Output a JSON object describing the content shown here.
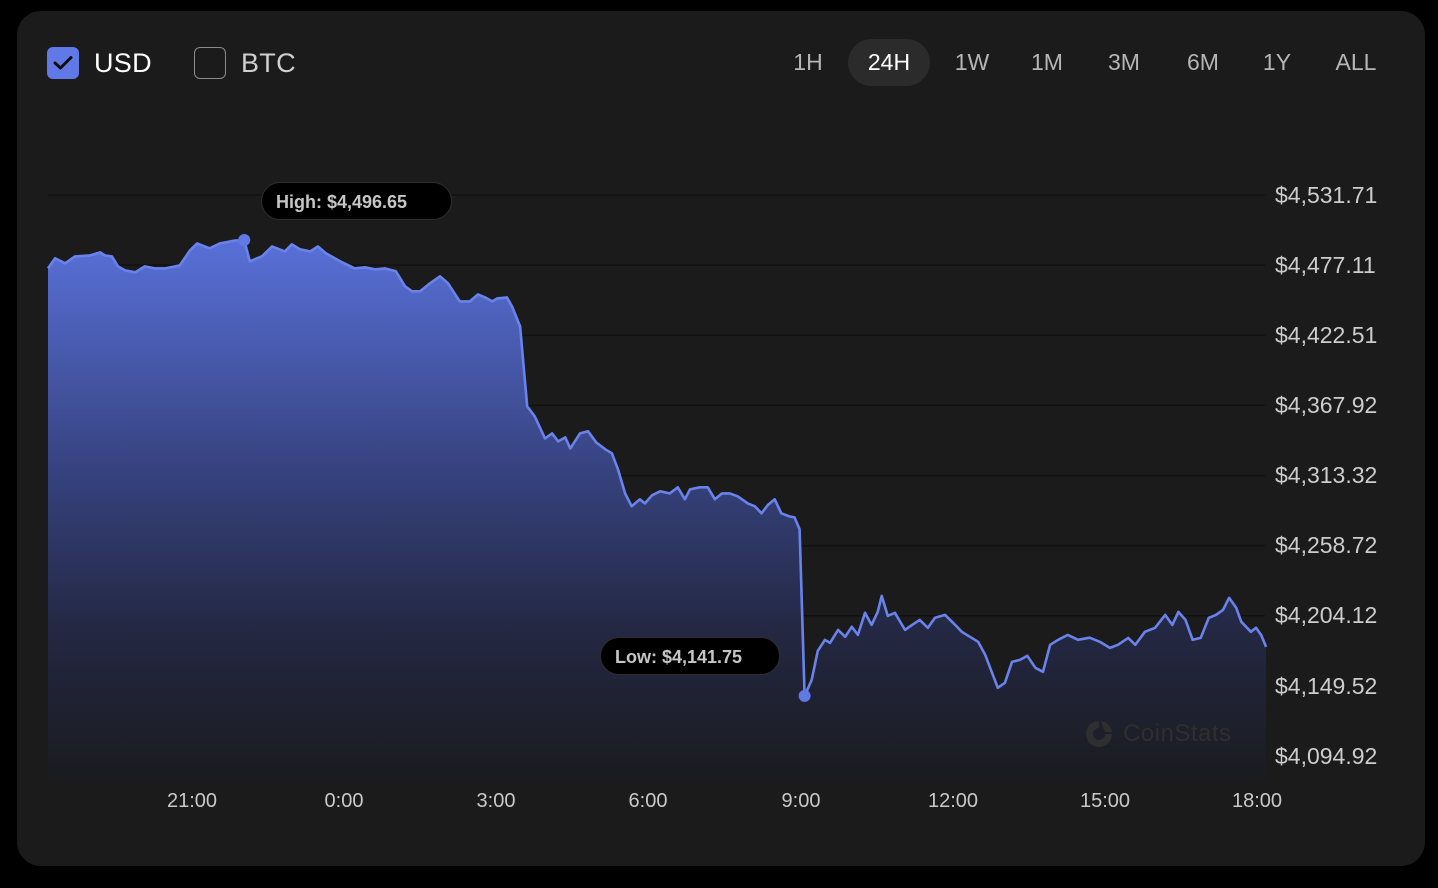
{
  "currency_toggles": [
    {
      "label": "USD",
      "checked": true
    },
    {
      "label": "BTC",
      "checked": false
    }
  ],
  "time_ranges": [
    {
      "label": "1H",
      "active": false
    },
    {
      "label": "24H",
      "active": true
    },
    {
      "label": "1W",
      "active": false
    },
    {
      "label": "1M",
      "active": false
    },
    {
      "label": "3M",
      "active": false
    },
    {
      "label": "6M",
      "active": false
    },
    {
      "label": "1Y",
      "active": false
    },
    {
      "label": "ALL",
      "active": false
    }
  ],
  "tooltips": {
    "high": "High: $4,496.65",
    "low": "Low: $4,141.75"
  },
  "watermark": "CoinStats",
  "colors": {
    "accent": "#6179e6",
    "line": "#6a83ec",
    "background": "#1b1b1b",
    "grid": "#111111"
  },
  "chart_data": {
    "type": "area",
    "title": "",
    "xlabel": "",
    "ylabel": "",
    "currency": "USD",
    "range": "24H",
    "y_ticks": [
      "$4,531.71",
      "$4,477.11",
      "$4,422.51",
      "$4,367.92",
      "$4,313.32",
      "$4,258.72",
      "$4,204.12",
      "$4,149.52",
      "$4,094.92"
    ],
    "x_ticks": [
      "21:00",
      "0:00",
      "3:00",
      "6:00",
      "9:00",
      "12:00",
      "15:00",
      "18:00"
    ],
    "ylim": [
      4094.92,
      4531.71
    ],
    "grid": true,
    "high": 4496.65,
    "low": 4141.75,
    "x_unit": "hours since 21:00 (previous day)",
    "points": [
      [
        -2.84,
        4474.6
      ],
      [
        -2.7,
        4482.4
      ],
      [
        -2.5,
        4478.5
      ],
      [
        -2.31,
        4483.9
      ],
      [
        -2.01,
        4484.7
      ],
      [
        -1.81,
        4487.0
      ],
      [
        -1.72,
        4484.7
      ],
      [
        -1.58,
        4483.9
      ],
      [
        -1.46,
        4476.1
      ],
      [
        -1.32,
        4473.0
      ],
      [
        -1.12,
        4471.5
      ],
      [
        -0.93,
        4476.1
      ],
      [
        -0.73,
        4474.6
      ],
      [
        -0.53,
        4474.6
      ],
      [
        -0.24,
        4476.9
      ],
      [
        -0.04,
        4488.6
      ],
      [
        0.1,
        4494.0
      ],
      [
        0.35,
        4490.2
      ],
      [
        0.55,
        4494.0
      ],
      [
        0.85,
        4496.3
      ],
      [
        1.03,
        4496.65
      ],
      [
        1.14,
        4480.1
      ],
      [
        1.38,
        4484.0
      ],
      [
        1.58,
        4491.7
      ],
      [
        1.83,
        4487.8
      ],
      [
        1.97,
        4493.3
      ],
      [
        2.13,
        4489.4
      ],
      [
        2.33,
        4487.8
      ],
      [
        2.48,
        4491.7
      ],
      [
        2.64,
        4486.3
      ],
      [
        2.92,
        4480.1
      ],
      [
        3.21,
        4474.6
      ],
      [
        3.41,
        4475.4
      ],
      [
        3.61,
        4473.8
      ],
      [
        3.8,
        4474.6
      ],
      [
        4.02,
        4472.3
      ],
      [
        4.2,
        4460.6
      ],
      [
        4.34,
        4456.7
      ],
      [
        4.5,
        4456.7
      ],
      [
        4.69,
        4462.9
      ],
      [
        4.89,
        4468.4
      ],
      [
        5.05,
        4462.9
      ],
      [
        5.28,
        4448.9
      ],
      [
        5.48,
        4448.9
      ],
      [
        5.64,
        4454.3
      ],
      [
        5.78,
        4452.0
      ],
      [
        5.92,
        4448.9
      ],
      [
        6.02,
        4451.2
      ],
      [
        6.21,
        4452.0
      ],
      [
        6.31,
        4445.0
      ],
      [
        6.47,
        4429.4
      ],
      [
        6.61,
        4367.1
      ],
      [
        6.76,
        4359.3
      ],
      [
        6.96,
        4342.2
      ],
      [
        7.1,
        4346.1
      ],
      [
        7.22,
        4339.9
      ],
      [
        7.36,
        4343.0
      ],
      [
        7.46,
        4334.4
      ],
      [
        7.65,
        4346.1
      ],
      [
        7.81,
        4347.7
      ],
      [
        7.97,
        4339.1
      ],
      [
        8.15,
        4333.7
      ],
      [
        8.28,
        4330.6
      ],
      [
        8.4,
        4318.1
      ],
      [
        8.54,
        4299.4
      ],
      [
        8.67,
        4289.3
      ],
      [
        8.83,
        4294.8
      ],
      [
        8.93,
        4291.6
      ],
      [
        9.07,
        4297.9
      ],
      [
        9.23,
        4301.0
      ],
      [
        9.42,
        4299.4
      ],
      [
        9.58,
        4304.1
      ],
      [
        9.72,
        4294.8
      ],
      [
        9.82,
        4302.5
      ],
      [
        10.01,
        4304.1
      ],
      [
        10.17,
        4304.1
      ],
      [
        10.31,
        4294.8
      ],
      [
        10.45,
        4299.4
      ],
      [
        10.6,
        4299.4
      ],
      [
        10.76,
        4297.1
      ],
      [
        10.96,
        4291.6
      ],
      [
        11.1,
        4289.3
      ],
      [
        11.23,
        4283.9
      ],
      [
        11.35,
        4290.1
      ],
      [
        11.49,
        4294.8
      ],
      [
        11.62,
        4283.9
      ],
      [
        11.78,
        4281.5
      ],
      [
        11.88,
        4280.7
      ],
      [
        11.98,
        4271.4
      ],
      [
        12.08,
        4141.75
      ],
      [
        12.22,
        4154.2
      ],
      [
        12.34,
        4176.8
      ],
      [
        12.48,
        4185.3
      ],
      [
        12.58,
        4183.0
      ],
      [
        12.74,
        4193.1
      ],
      [
        12.88,
        4187.7
      ],
      [
        13.01,
        4195.5
      ],
      [
        13.13,
        4189.2
      ],
      [
        13.27,
        4206.4
      ],
      [
        13.4,
        4197.0
      ],
      [
        13.52,
        4207.1
      ],
      [
        13.6,
        4219.6
      ],
      [
        13.72,
        4204.0
      ],
      [
        13.86,
        4206.4
      ],
      [
        14.06,
        4193.1
      ],
      [
        14.2,
        4197.0
      ],
      [
        14.35,
        4200.9
      ],
      [
        14.51,
        4194.7
      ],
      [
        14.65,
        4202.5
      ],
      [
        14.85,
        4204.8
      ],
      [
        15.05,
        4197.0
      ],
      [
        15.18,
        4191.6
      ],
      [
        15.34,
        4187.7
      ],
      [
        15.5,
        4183.8
      ],
      [
        15.64,
        4173.7
      ],
      [
        15.89,
        4148.0
      ],
      [
        16.03,
        4151.9
      ],
      [
        16.17,
        4168.2
      ],
      [
        16.33,
        4169.8
      ],
      [
        16.47,
        4172.9
      ],
      [
        16.63,
        4163.6
      ],
      [
        16.78,
        4160.5
      ],
      [
        16.92,
        4181.5
      ],
      [
        17.08,
        4185.4
      ],
      [
        17.27,
        4189.2
      ],
      [
        17.47,
        4185.4
      ],
      [
        17.7,
        4187.0
      ],
      [
        17.9,
        4183.8
      ],
      [
        18.1,
        4179.1
      ],
      [
        18.26,
        4181.5
      ],
      [
        18.46,
        4186.9
      ],
      [
        18.6,
        4181.5
      ],
      [
        18.79,
        4191.6
      ],
      [
        18.99,
        4194.7
      ],
      [
        19.19,
        4204.8
      ],
      [
        19.33,
        4197.0
      ],
      [
        19.45,
        4207.1
      ],
      [
        19.59,
        4200.9
      ],
      [
        19.73,
        4185.4
      ],
      [
        19.89,
        4186.9
      ],
      [
        20.05,
        4202.5
      ],
      [
        20.19,
        4204.8
      ],
      [
        20.33,
        4208.7
      ],
      [
        20.45,
        4218.1
      ],
      [
        20.59,
        4210.3
      ],
      [
        20.69,
        4199.4
      ],
      [
        20.88,
        4191.6
      ],
      [
        20.98,
        4194.7
      ],
      [
        21.08,
        4189.2
      ],
      [
        21.18,
        4179.9
      ]
    ]
  }
}
